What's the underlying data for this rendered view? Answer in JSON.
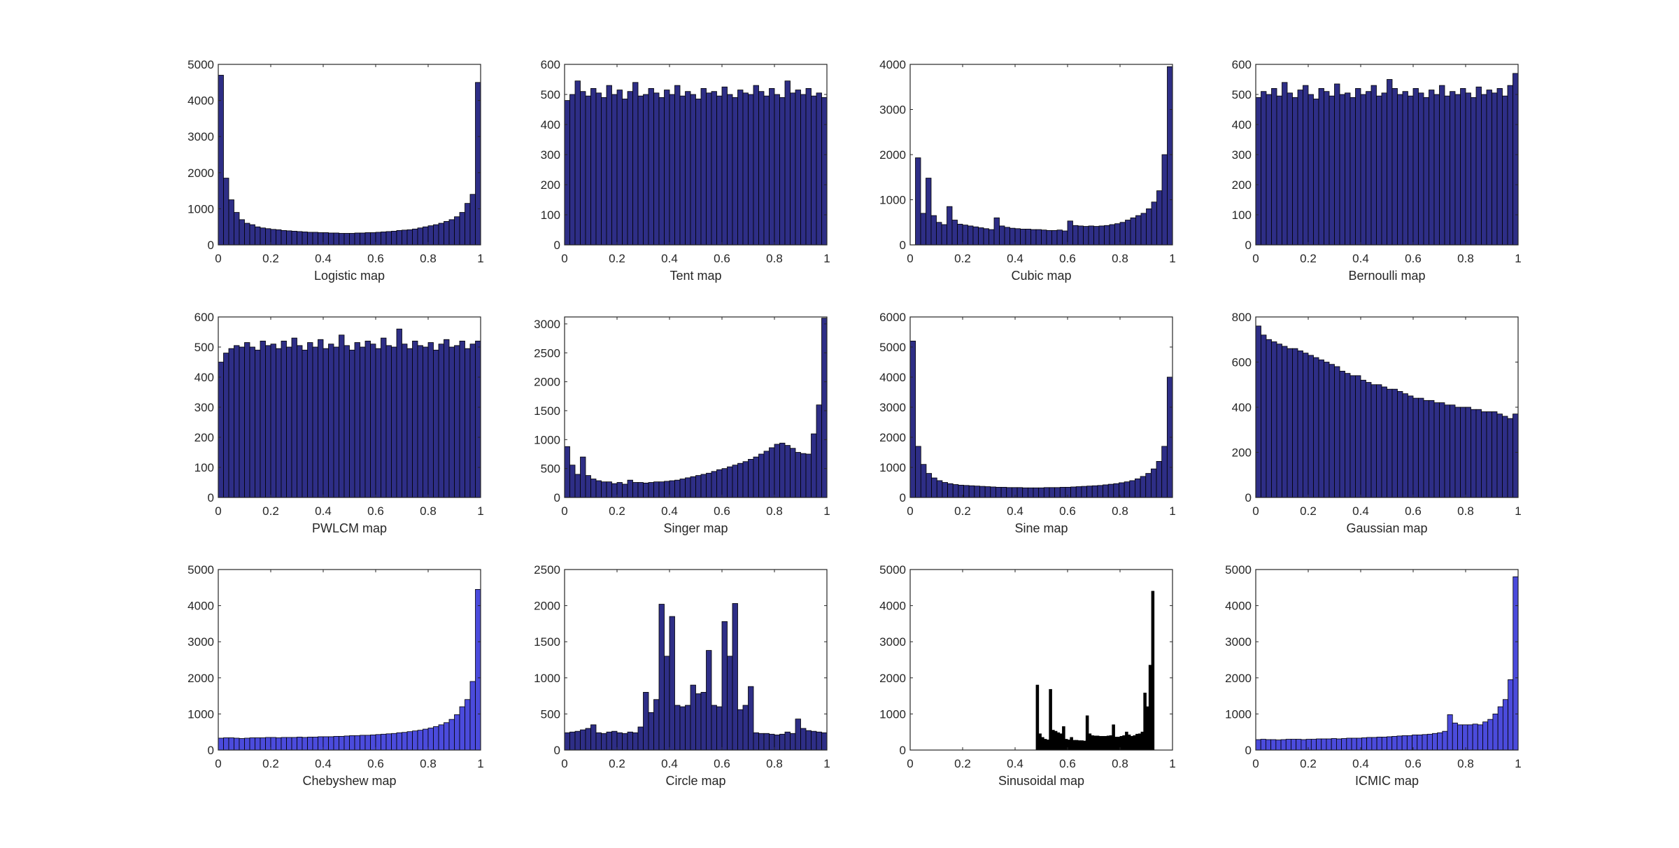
{
  "bar_edge_color": "#000000",
  "chart_data": [
    {
      "type": "bar",
      "xlabel": "Logistic map",
      "xlim": [
        0,
        1
      ],
      "ylim": [
        0,
        5000
      ],
      "grid": false,
      "color": "#2e2e86",
      "x_ticks": [
        "0",
        "0.2",
        "0.4",
        "0.6",
        "0.8",
        "1"
      ],
      "y_ticks": [
        "0",
        "1000",
        "2000",
        "3000",
        "4000",
        "5000"
      ],
      "values": [
        4700,
        1850,
        1250,
        900,
        700,
        600,
        560,
        500,
        470,
        450,
        430,
        420,
        400,
        390,
        380,
        370,
        360,
        350,
        350,
        340,
        340,
        330,
        330,
        320,
        320,
        320,
        330,
        330,
        340,
        340,
        350,
        360,
        370,
        380,
        400,
        410,
        420,
        440,
        470,
        500,
        530,
        560,
        600,
        650,
        700,
        780,
        900,
        1150,
        1400,
        4500
      ]
    },
    {
      "type": "bar",
      "xlabel": "Tent map",
      "xlim": [
        0,
        1
      ],
      "ylim": [
        0,
        600
      ],
      "grid": false,
      "color": "#2e2e86",
      "x_ticks": [
        "0",
        "0.2",
        "0.4",
        "0.6",
        "0.8",
        "1"
      ],
      "y_ticks": [
        "0",
        "100",
        "200",
        "300",
        "400",
        "500",
        "600"
      ],
      "values": [
        480,
        500,
        545,
        510,
        495,
        520,
        505,
        490,
        530,
        500,
        515,
        485,
        510,
        540,
        495,
        500,
        520,
        505,
        490,
        515,
        500,
        530,
        495,
        510,
        500,
        485,
        520,
        505,
        510,
        495,
        525,
        500,
        490,
        515,
        505,
        500,
        530,
        510,
        495,
        520,
        500,
        490,
        545,
        505,
        515,
        500,
        520,
        495,
        505,
        490
      ]
    },
    {
      "type": "bar",
      "xlabel": "Cubic map",
      "xlim": [
        0,
        1
      ],
      "ylim": [
        0,
        4000
      ],
      "grid": false,
      "color": "#2e2e86",
      "x_ticks": [
        "0",
        "0.2",
        "0.4",
        "0.6",
        "0.8",
        "1"
      ],
      "y_ticks": [
        "0",
        "1000",
        "2000",
        "3000",
        "4000"
      ],
      "values": [
        0,
        1930,
        700,
        1480,
        650,
        500,
        450,
        850,
        550,
        460,
        440,
        420,
        400,
        380,
        360,
        340,
        600,
        420,
        390,
        370,
        360,
        350,
        350,
        340,
        340,
        330,
        320,
        320,
        330,
        310,
        530,
        430,
        420,
        410,
        420,
        410,
        420,
        430,
        450,
        470,
        500,
        550,
        600,
        650,
        700,
        800,
        950,
        1200,
        2000,
        3950
      ]
    },
    {
      "type": "bar",
      "xlabel": "Bernoulli map",
      "xlim": [
        0,
        1
      ],
      "ylim": [
        0,
        600
      ],
      "grid": false,
      "color": "#2e2e86",
      "x_ticks": [
        "0",
        "0.2",
        "0.4",
        "0.6",
        "0.8",
        "1"
      ],
      "y_ticks": [
        "0",
        "100",
        "200",
        "300",
        "400",
        "500",
        "600"
      ],
      "values": [
        490,
        510,
        500,
        520,
        495,
        540,
        505,
        490,
        515,
        530,
        500,
        485,
        520,
        510,
        495,
        535,
        500,
        505,
        490,
        520,
        500,
        510,
        530,
        495,
        505,
        550,
        520,
        500,
        510,
        495,
        520,
        505,
        490,
        515,
        500,
        530,
        495,
        510,
        500,
        520,
        505,
        490,
        525,
        500,
        515,
        505,
        520,
        495,
        530,
        570
      ]
    },
    {
      "type": "bar",
      "xlabel": "PWLCM map",
      "xlim": [
        0,
        1
      ],
      "ylim": [
        0,
        600
      ],
      "grid": false,
      "color": "#2e2e86",
      "x_ticks": [
        "0",
        "0.2",
        "0.4",
        "0.6",
        "0.8",
        "1"
      ],
      "y_ticks": [
        "0",
        "100",
        "200",
        "300",
        "400",
        "500",
        "600"
      ],
      "values": [
        450,
        480,
        495,
        505,
        500,
        515,
        500,
        490,
        520,
        505,
        510,
        495,
        520,
        500,
        530,
        505,
        490,
        515,
        500,
        525,
        495,
        510,
        500,
        540,
        505,
        490,
        515,
        500,
        520,
        510,
        495,
        530,
        505,
        500,
        560,
        510,
        495,
        520,
        505,
        500,
        515,
        490,
        510,
        525,
        500,
        505,
        520,
        495,
        510,
        520
      ]
    },
    {
      "type": "bar",
      "xlabel": "Singer map",
      "xlim": [
        0,
        1
      ],
      "ylim": [
        0,
        3120
      ],
      "grid": false,
      "color": "#2e2e86",
      "x_ticks": [
        "0",
        "0.2",
        "0.4",
        "0.6",
        "0.8",
        "1"
      ],
      "y_ticks": [
        "0",
        "500",
        "1000",
        "1500",
        "2000",
        "2500",
        "3000"
      ],
      "values": [
        880,
        560,
        400,
        700,
        380,
        320,
        290,
        270,
        270,
        240,
        260,
        230,
        300,
        260,
        260,
        250,
        260,
        270,
        270,
        280,
        290,
        300,
        320,
        340,
        360,
        380,
        400,
        420,
        450,
        480,
        500,
        530,
        560,
        590,
        620,
        660,
        700,
        750,
        800,
        860,
        920,
        940,
        900,
        850,
        780,
        760,
        750,
        1100,
        1600,
        3100
      ]
    },
    {
      "type": "bar",
      "xlabel": "Sine map",
      "xlim": [
        0,
        1
      ],
      "ylim": [
        0,
        6000
      ],
      "grid": false,
      "color": "#2e2e86",
      "x_ticks": [
        "0",
        "0.2",
        "0.4",
        "0.6",
        "0.8",
        "1"
      ],
      "y_ticks": [
        "0",
        "1000",
        "2000",
        "3000",
        "4000",
        "5000",
        "6000"
      ],
      "values": [
        5200,
        1700,
        1100,
        800,
        650,
        560,
        500,
        460,
        430,
        410,
        400,
        390,
        380,
        370,
        360,
        350,
        340,
        340,
        330,
        330,
        330,
        320,
        320,
        320,
        320,
        330,
        330,
        330,
        340,
        340,
        350,
        360,
        370,
        380,
        390,
        400,
        420,
        440,
        460,
        490,
        520,
        560,
        620,
        700,
        800,
        950,
        1200,
        1700,
        4000
      ]
    },
    {
      "type": "bar",
      "xlabel": "Gaussian map",
      "xlim": [
        0,
        1
      ],
      "ylim": [
        0,
        800
      ],
      "grid": false,
      "color": "#2e2e86",
      "x_ticks": [
        "0",
        "0.2",
        "0.4",
        "0.6",
        "0.8",
        "1"
      ],
      "y_ticks": [
        "0",
        "200",
        "400",
        "600",
        "800"
      ],
      "values": [
        760,
        720,
        700,
        690,
        680,
        670,
        660,
        660,
        650,
        640,
        630,
        620,
        610,
        600,
        590,
        580,
        560,
        550,
        540,
        540,
        520,
        510,
        500,
        500,
        490,
        480,
        480,
        470,
        460,
        450,
        440,
        440,
        430,
        430,
        420,
        420,
        410,
        410,
        400,
        400,
        400,
        390,
        390,
        380,
        380,
        380,
        370,
        360,
        350,
        370
      ]
    },
    {
      "type": "bar",
      "xlabel": "Chebyshew map",
      "xlim": [
        0,
        1
      ],
      "ylim": [
        0,
        5000
      ],
      "grid": false,
      "color": "#4b4bdc",
      "x_ticks": [
        "0",
        "0.2",
        "0.4",
        "0.6",
        "0.8",
        "1"
      ],
      "y_ticks": [
        "0",
        "1000",
        "2000",
        "3000",
        "4000",
        "5000"
      ],
      "values": [
        330,
        340,
        340,
        330,
        320,
        330,
        340,
        340,
        340,
        350,
        350,
        340,
        350,
        350,
        350,
        360,
        350,
        360,
        360,
        370,
        370,
        370,
        380,
        380,
        390,
        400,
        400,
        410,
        410,
        420,
        430,
        440,
        450,
        460,
        480,
        490,
        510,
        530,
        550,
        580,
        610,
        650,
        700,
        760,
        850,
        980,
        1200,
        1400,
        1900,
        4450
      ]
    },
    {
      "type": "bar",
      "xlabel": "Circle map",
      "xlim": [
        0,
        1
      ],
      "ylim": [
        0,
        2500
      ],
      "grid": false,
      "color": "#2e2e86",
      "x_ticks": [
        "0",
        "0.2",
        "0.4",
        "0.6",
        "0.8",
        "1"
      ],
      "y_ticks": [
        "0",
        "500",
        "1000",
        "1500",
        "2000",
        "2500"
      ],
      "values": [
        240,
        250,
        260,
        280,
        300,
        350,
        240,
        230,
        250,
        260,
        240,
        230,
        250,
        240,
        320,
        800,
        520,
        700,
        2020,
        1300,
        1850,
        620,
        600,
        620,
        900,
        780,
        800,
        1380,
        620,
        600,
        1780,
        1300,
        2030,
        560,
        620,
        880,
        240,
        230,
        230,
        220,
        210,
        220,
        250,
        230,
        430,
        300,
        270,
        260,
        250,
        240
      ]
    },
    {
      "type": "bar",
      "xlabel": "Sinusoidal map",
      "xlim": [
        0,
        1
      ],
      "ylim": [
        0,
        5000
      ],
      "grid": false,
      "color": "#000000",
      "x_ticks": [
        "0",
        "0.2",
        "0.4",
        "0.6",
        "0.8",
        "1"
      ],
      "y_ticks": [
        "0",
        "1000",
        "2000",
        "3000",
        "4000",
        "5000"
      ],
      "values": [
        0,
        0,
        0,
        0,
        0,
        0,
        0,
        0,
        0,
        0,
        0,
        0,
        0,
        0,
        0,
        0,
        0,
        0,
        0,
        0,
        0,
        0,
        0,
        0,
        0,
        0,
        0,
        0,
        0,
        0,
        0,
        0,
        0,
        0,
        0,
        0,
        0,
        0,
        0,
        0,
        0,
        0,
        0,
        0,
        0,
        0,
        0,
        0,
        1800,
        450,
        350,
        300,
        280,
        1680,
        550,
        520,
        480,
        450,
        650,
        300,
        280,
        350,
        270,
        270,
        260,
        260,
        250,
        950,
        450,
        400,
        390,
        390,
        380,
        380,
        380,
        390,
        400,
        700,
        360,
        360,
        380,
        400,
        500,
        420,
        380,
        400,
        440,
        450,
        500,
        1580,
        1200,
        2350,
        4400,
        0,
        0,
        0,
        0,
        0,
        0,
        0
      ]
    },
    {
      "type": "bar",
      "xlabel": "ICMIC map",
      "xlim": [
        0,
        1
      ],
      "ylim": [
        0,
        5000
      ],
      "grid": false,
      "color": "#4b4bdc",
      "x_ticks": [
        "0",
        "0.2",
        "0.4",
        "0.6",
        "0.8",
        "1"
      ],
      "y_ticks": [
        "0",
        "1000",
        "2000",
        "3000",
        "4000",
        "5000"
      ],
      "values": [
        290,
        300,
        290,
        290,
        280,
        290,
        300,
        300,
        300,
        290,
        300,
        300,
        310,
        310,
        310,
        320,
        310,
        320,
        330,
        330,
        330,
        340,
        350,
        350,
        360,
        360,
        370,
        380,
        390,
        400,
        400,
        420,
        420,
        430,
        440,
        460,
        480,
        520,
        980,
        750,
        700,
        700,
        700,
        720,
        700,
        780,
        850,
        1000,
        1200,
        1400,
        1950,
        4800
      ]
    }
  ]
}
